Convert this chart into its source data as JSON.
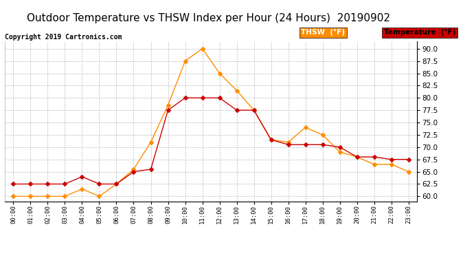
{
  "title": "Outdoor Temperature vs THSW Index per Hour (24 Hours)  20190902",
  "copyright": "Copyright 2019 Cartronics.com",
  "hours": [
    "00:00",
    "01:00",
    "02:00",
    "03:00",
    "04:00",
    "05:00",
    "06:00",
    "07:00",
    "08:00",
    "09:00",
    "10:00",
    "11:00",
    "12:00",
    "13:00",
    "14:00",
    "15:00",
    "16:00",
    "17:00",
    "18:00",
    "19:00",
    "20:00",
    "21:00",
    "22:00",
    "23:00"
  ],
  "thsw": [
    60.0,
    60.0,
    60.0,
    60.0,
    61.5,
    60.0,
    62.5,
    65.5,
    71.0,
    78.5,
    87.5,
    90.0,
    85.0,
    81.5,
    77.5,
    71.5,
    71.0,
    74.0,
    72.5,
    69.0,
    68.0,
    66.5,
    66.5,
    65.0
  ],
  "temperature": [
    62.5,
    62.5,
    62.5,
    62.5,
    64.0,
    62.5,
    62.5,
    65.0,
    65.5,
    77.5,
    80.0,
    80.0,
    80.0,
    77.5,
    77.5,
    71.5,
    70.5,
    70.5,
    70.5,
    70.0,
    68.0,
    68.0,
    67.5,
    67.5
  ],
  "thsw_color": "#FF8C00",
  "temp_color": "#CC0000",
  "ylim": [
    59.0,
    91.5
  ],
  "yticks": [
    60.0,
    62.5,
    65.0,
    67.5,
    70.0,
    72.5,
    75.0,
    77.5,
    80.0,
    82.5,
    85.0,
    87.5,
    90.0
  ],
  "title_fontsize": 11,
  "copyright_fontsize": 7,
  "bg_color": "#ffffff",
  "plot_bg_color": "#ffffff",
  "grid_color": "#bbbbbb",
  "marker_size": 3,
  "legend_thsw_label": "THSW  (°F)",
  "legend_temp_label": "Temperature  (°F)"
}
